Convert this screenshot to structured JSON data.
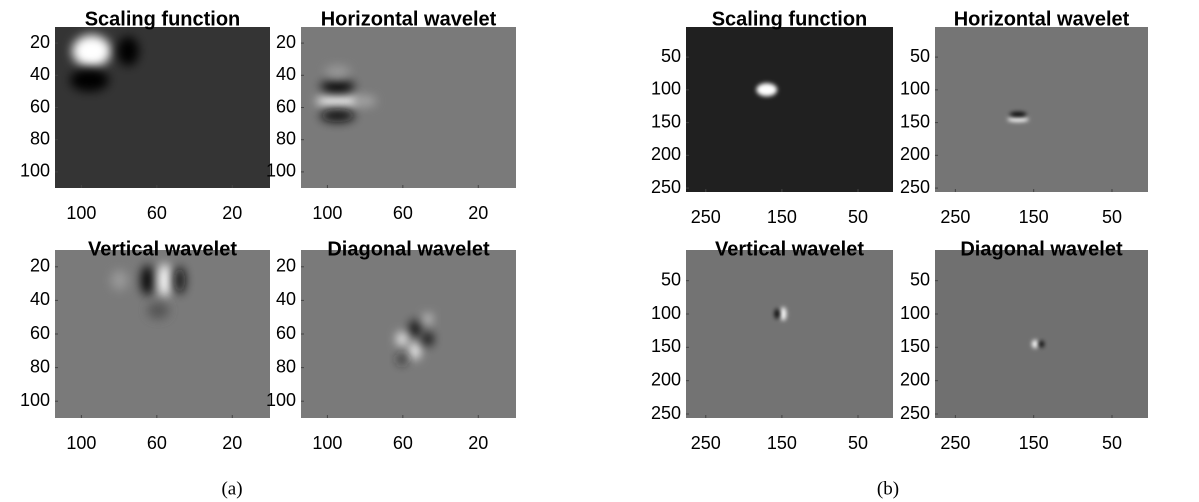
{
  "chart_data": [
    {
      "type": "image",
      "title": "Scaling function",
      "xlim": [
        114,
        0
      ],
      "ylim": [
        10,
        110
      ],
      "xticks": [
        100,
        60,
        20
      ],
      "yticks": [
        20,
        40,
        60,
        80,
        100
      ]
    },
    {
      "type": "image",
      "title": "Horizontal wavelet",
      "xlim": [
        114,
        0
      ],
      "ylim": [
        10,
        110
      ],
      "xticks": [
        100,
        60,
        20
      ],
      "yticks": [
        20,
        40,
        60,
        80,
        100
      ]
    },
    {
      "type": "image",
      "title": "Vertical wavelet",
      "xlim": [
        114,
        0
      ],
      "ylim": [
        10,
        110
      ],
      "xticks": [
        100,
        60,
        20
      ],
      "yticks": [
        20,
        40,
        60,
        80,
        100
      ]
    },
    {
      "type": "image",
      "title": "Diagonal wavelet",
      "xlim": [
        114,
        0
      ],
      "ylim": [
        10,
        110
      ],
      "xticks": [
        100,
        60,
        20
      ],
      "yticks": [
        20,
        40,
        60,
        80,
        100
      ]
    },
    {
      "type": "image",
      "title": "Scaling function",
      "xlim": [
        276,
        4
      ],
      "ylim": [
        4,
        256
      ],
      "xticks": [
        250,
        150,
        50
      ],
      "yticks": [
        50,
        100,
        150,
        200,
        250
      ]
    },
    {
      "type": "image",
      "title": "Horizontal wavelet",
      "xlim": [
        276,
        4
      ],
      "ylim": [
        4,
        256
      ],
      "xticks": [
        250,
        150,
        50
      ],
      "yticks": [
        50,
        100,
        150,
        200,
        250
      ]
    },
    {
      "type": "image",
      "title": "Vertical wavelet",
      "xlim": [
        276,
        4
      ],
      "ylim": [
        4,
        256
      ],
      "xticks": [
        250,
        150,
        50
      ],
      "yticks": [
        50,
        100,
        150,
        200,
        250
      ]
    },
    {
      "type": "image",
      "title": "Diagonal wavelet",
      "xlim": [
        276,
        4
      ],
      "ylim": [
        4,
        256
      ],
      "xticks": [
        250,
        150,
        50
      ],
      "yticks": [
        50,
        100,
        150,
        200,
        250
      ]
    }
  ],
  "captions": [
    "(a)",
    "(b)"
  ]
}
